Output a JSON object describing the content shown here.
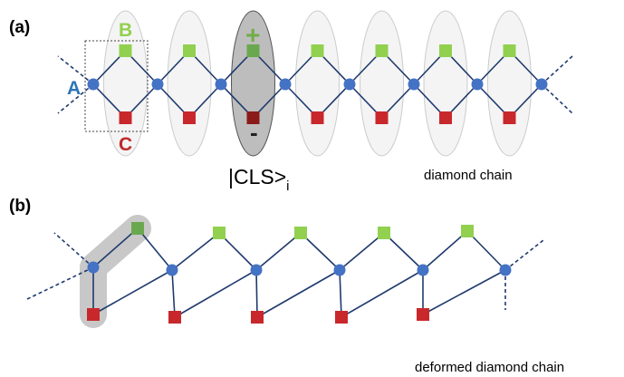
{
  "panel_a": {
    "label": "(a)",
    "site_b": "B",
    "site_a": "A",
    "site_c": "C",
    "plus": "+",
    "minus": "-",
    "state": {
      "main": "|CLS>",
      "subscript": "i"
    },
    "caption": "diamond chain"
  },
  "panel_b": {
    "label": "(b)",
    "caption": "deformed diamond chain"
  }
}
